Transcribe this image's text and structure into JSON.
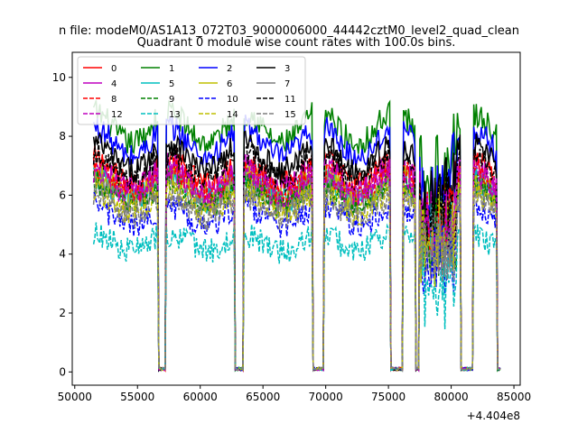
{
  "chart_data": {
    "type": "line",
    "suptitle": "n file: modeM0/AS1A13_072T03_9000006000_44442cztM0_level2_quad_clean",
    "title": "Quadrant 0 module wise count rates with 100.0s bins.",
    "xlabel": "",
    "ylabel": "",
    "x_offset_label": "+4.404e8",
    "xlim": [
      49800,
      85500
    ],
    "ylim": [
      -0.45,
      10.85
    ],
    "xticks": [
      50000,
      55000,
      60000,
      65000,
      70000,
      75000,
      80000,
      85000
    ],
    "xtick_labels": [
      "50000",
      "55000",
      "60000",
      "65000",
      "70000",
      "75000",
      "80000",
      "85000"
    ],
    "yticks": [
      0,
      2,
      4,
      6,
      8,
      10
    ],
    "ytick_labels": [
      "0",
      "2",
      "4",
      "6",
      "8",
      "10"
    ],
    "grid": false,
    "legend_position": "top-left",
    "legend_columns": 4,
    "gaps": [
      [
        56700,
        57200
      ],
      [
        62800,
        63400
      ],
      [
        69000,
        69800
      ],
      [
        75200,
        76100
      ],
      [
        77200,
        77400
      ],
      [
        80800,
        81700
      ],
      [
        83700,
        83900
      ]
    ],
    "series": [
      {
        "name": "0",
        "color": "#ff0000",
        "dash": "solid",
        "level": 6.8
      },
      {
        "name": "1",
        "color": "#008000",
        "dash": "solid",
        "level": 8.3
      },
      {
        "name": "2",
        "color": "#0000ff",
        "dash": "solid",
        "level": 7.8
      },
      {
        "name": "3",
        "color": "#000000",
        "dash": "solid",
        "level": 7.3
      },
      {
        "name": "4",
        "color": "#bf00bf",
        "dash": "solid",
        "level": 6.6
      },
      {
        "name": "5",
        "color": "#00bfbf",
        "dash": "solid",
        "level": 6.2
      },
      {
        "name": "6",
        "color": "#bfbf00",
        "dash": "solid",
        "level": 6.3
      },
      {
        "name": "7",
        "color": "#7f7f7f",
        "dash": "solid",
        "level": 6.1
      },
      {
        "name": "8",
        "color": "#ff0000",
        "dash": "dashed",
        "level": 6.5
      },
      {
        "name": "9",
        "color": "#008000",
        "dash": "dashed",
        "level": 6.0
      },
      {
        "name": "10",
        "color": "#0000ff",
        "dash": "dashed",
        "level": 5.3
      },
      {
        "name": "11",
        "color": "#000000",
        "dash": "dashed",
        "level": 7.0
      },
      {
        "name": "12",
        "color": "#bf00bf",
        "dash": "dashed",
        "level": 6.4
      },
      {
        "name": "13",
        "color": "#00bfbf",
        "dash": "dashed",
        "level": 4.4
      },
      {
        "name": "14",
        "color": "#bfbf00",
        "dash": "dashed",
        "level": 5.8
      },
      {
        "name": "15",
        "color": "#7f7f7f",
        "dash": "dashed",
        "level": 5.6
      }
    ]
  }
}
